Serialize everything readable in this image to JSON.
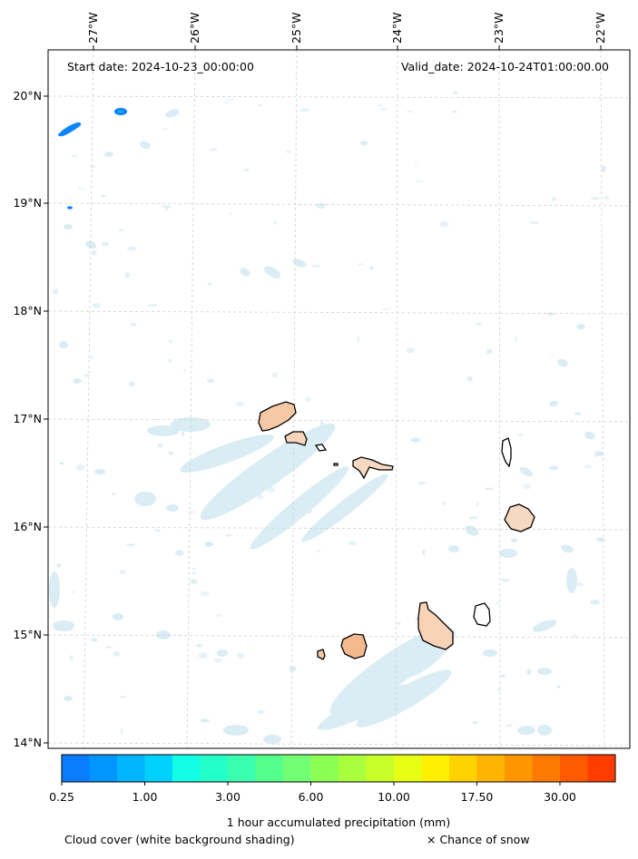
{
  "map": {
    "start_label": "Start date: 2024-10-23_00:00:00",
    "valid_label": "Valid_date: 2024-10-24T01:00:00.00",
    "longitude_ticks": [
      "27°W",
      "26°W",
      "25°W",
      "24°W",
      "23°W",
      "22°W"
    ],
    "latitude_ticks": [
      "20°N",
      "19°N",
      "18°N",
      "17°N",
      "16°N",
      "15°N",
      "14°N"
    ],
    "islands": [
      "santo-antao",
      "sao-vicente",
      "santa-luzia",
      "sao-nicolau",
      "sal",
      "boa-vista",
      "fogo",
      "brava",
      "santiago",
      "maio"
    ],
    "colors": {
      "coastline": "#000000",
      "land_fill": "#f7c8a6",
      "cloud_shading": "#d4eaf2",
      "grid": "#c8c8c8"
    }
  },
  "colorbar": {
    "title": "1 hour accumulated precipitation (mm)",
    "tick_labels": [
      "0.25",
      "1.00",
      "3.00",
      "6.00",
      "10.00",
      "17.50",
      "30.00"
    ],
    "colors": [
      "#0a7dff",
      "#0096ff",
      "#00b4ff",
      "#00d2ff",
      "#12ffe6",
      "#25ffc8",
      "#39ffaf",
      "#55ff8c",
      "#73ff73",
      "#8cff55",
      "#aaff3c",
      "#c8ff28",
      "#e6ff14",
      "#fff000",
      "#ffd200",
      "#ffb400",
      "#ff9600",
      "#ff7800",
      "#ff5a00",
      "#ff3c00"
    ]
  },
  "legend": {
    "cloud_cover": "Cloud cover (white background shading)",
    "snow": "× Chance of snow"
  }
}
